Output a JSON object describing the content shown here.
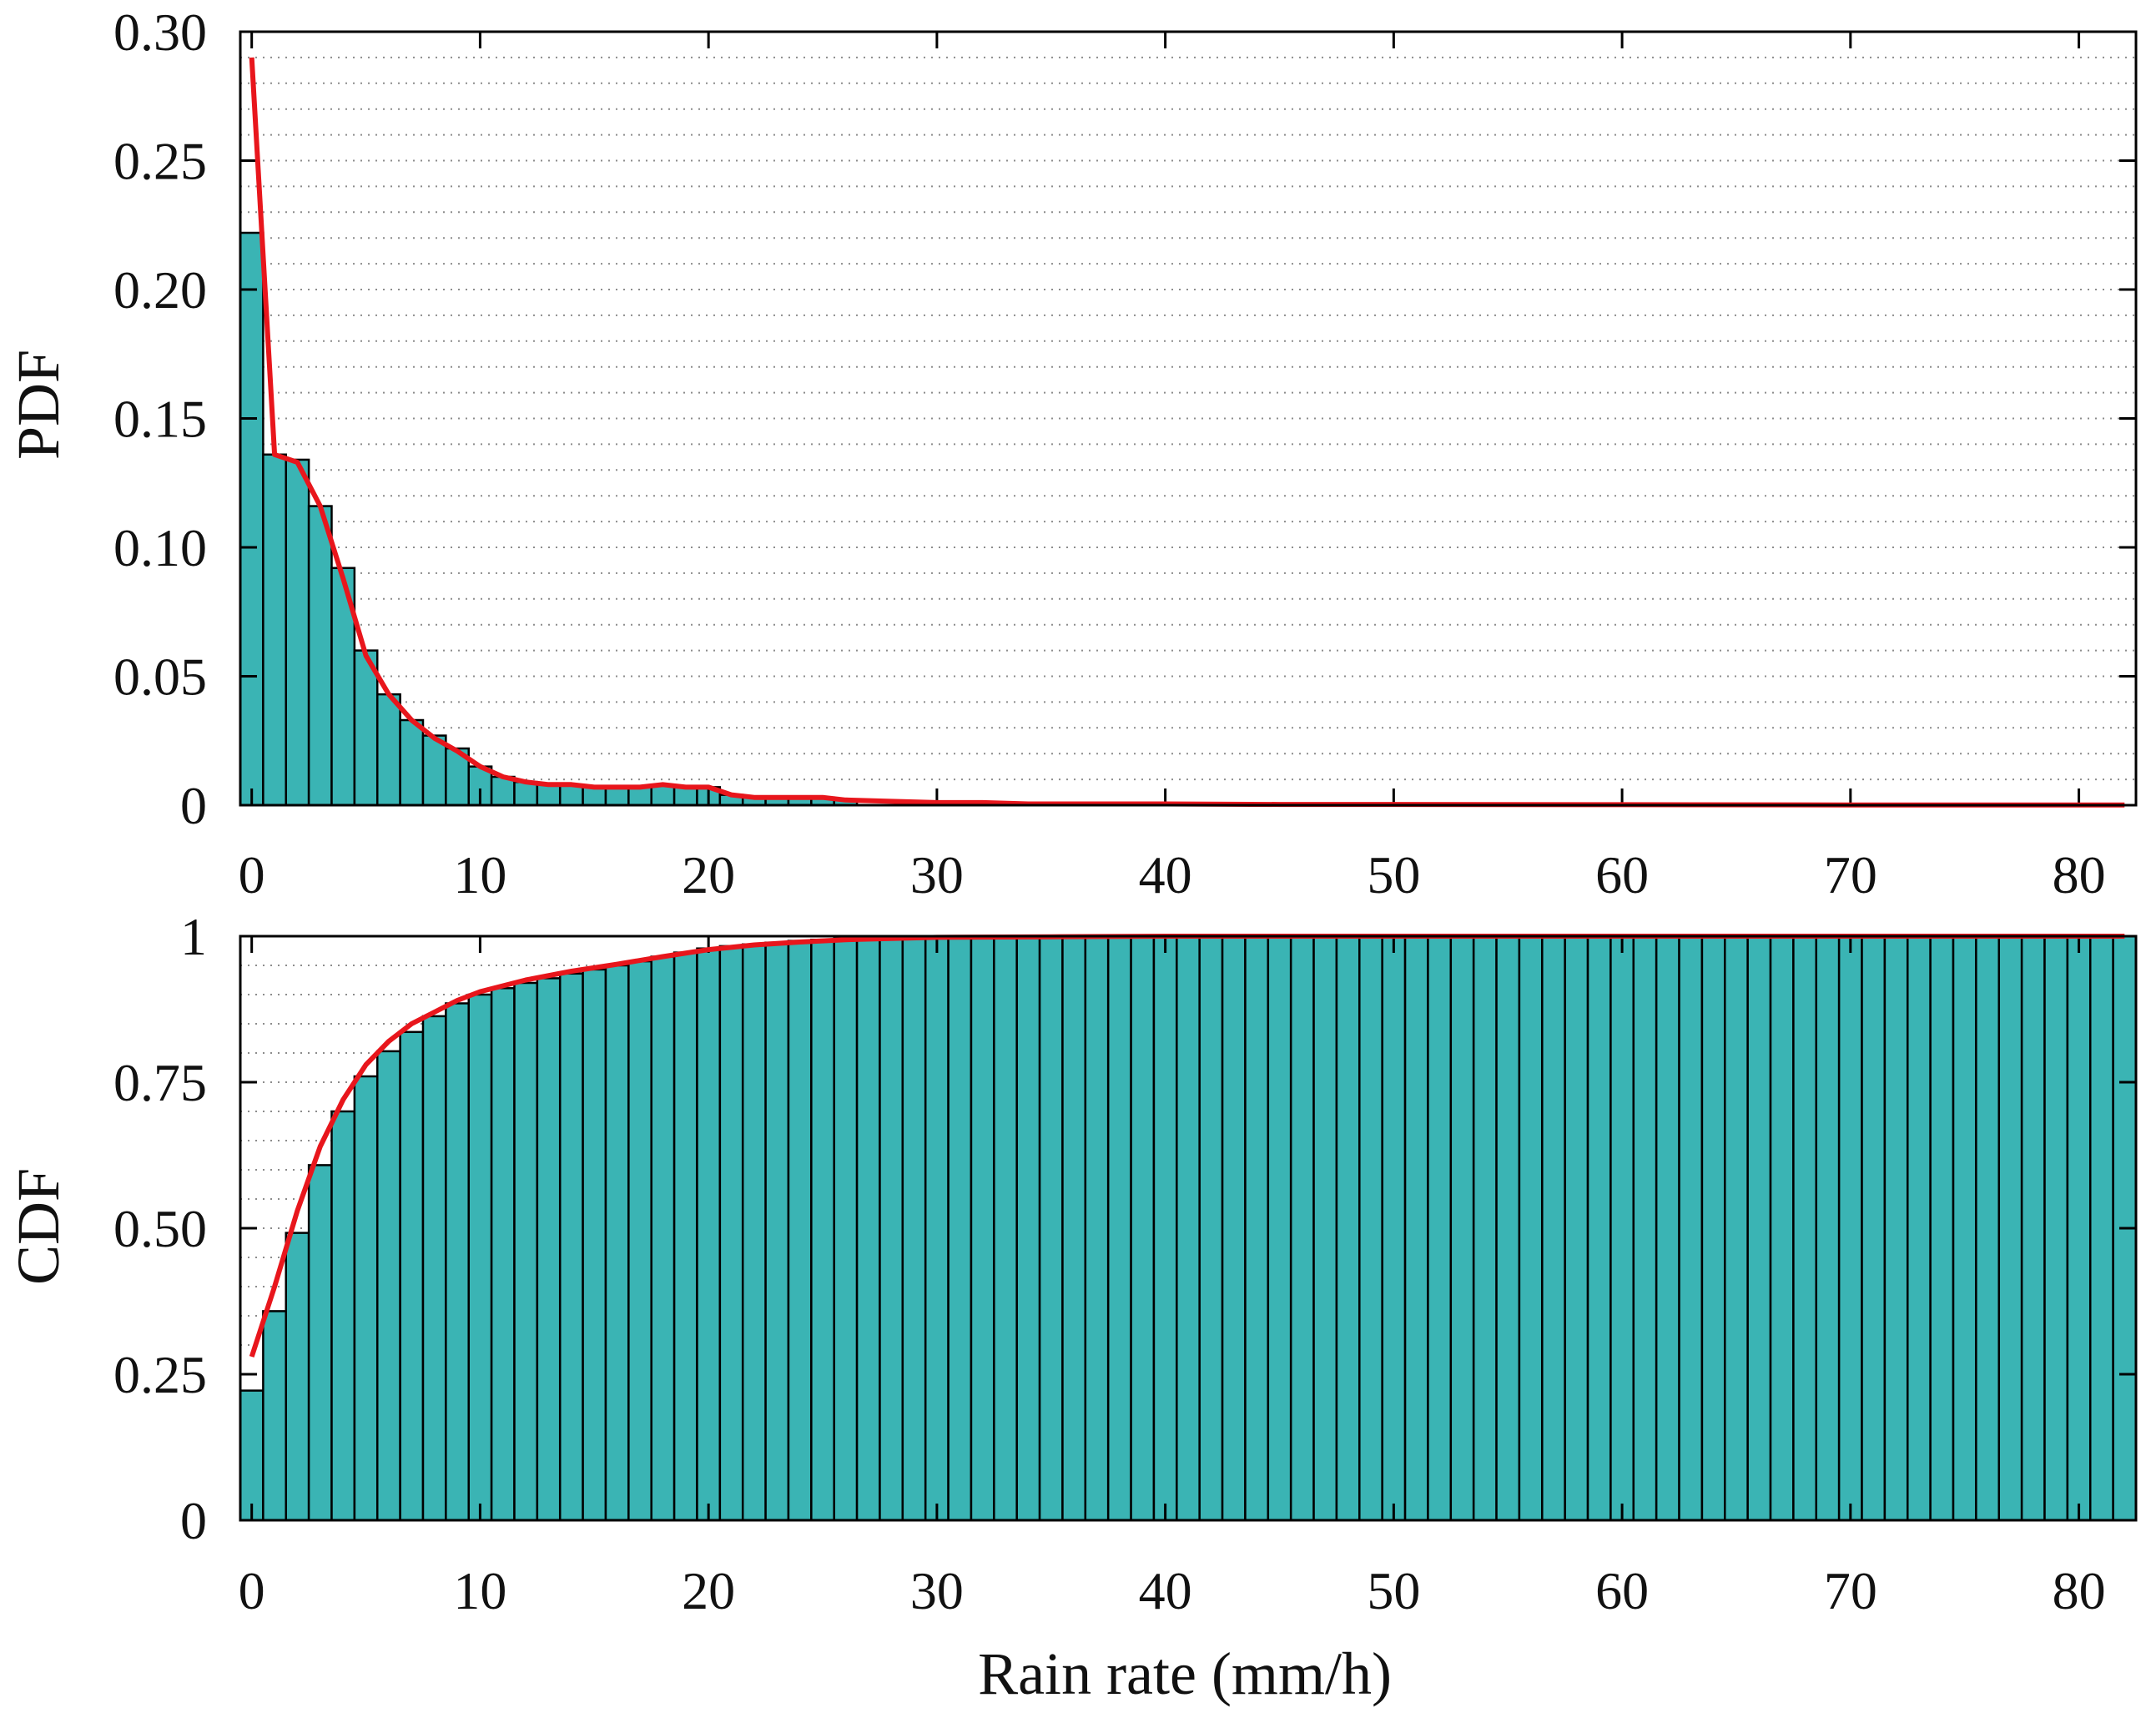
{
  "colors": {
    "bar_fill": "#3ab4b4",
    "bar_edge": "#000000",
    "fit_line": "#e8161c",
    "grid": "#8c8c8c",
    "axes": "#000000"
  },
  "chart_data": [
    {
      "id": "pdf",
      "type": "bar",
      "title": "",
      "xlabel": "",
      "ylabel": "PDF",
      "xlim": [
        -0.5,
        82.5
      ],
      "ylim": [
        0,
        0.3
      ],
      "grid": true,
      "bin_width": 1,
      "xticks": [
        0,
        10,
        20,
        30,
        40,
        50,
        60,
        70,
        80
      ],
      "xtick_labels": [
        "0",
        "10",
        "20",
        "30",
        "40",
        "50",
        "60",
        "70",
        "80"
      ],
      "yticks": [
        0,
        0.05,
        0.1,
        0.15,
        0.2,
        0.25,
        0.3
      ],
      "ytick_labels": [
        "0",
        "0.05",
        "0.10",
        "0.15",
        "0.20",
        "0.25",
        "0.30"
      ],
      "bar_x": [
        0,
        1,
        2,
        3,
        4,
        5,
        6,
        7,
        8,
        9,
        10,
        11,
        12,
        13,
        14,
        15,
        16,
        17,
        18,
        19,
        20,
        21,
        22,
        23,
        24,
        25,
        26
      ],
      "bar_values": [
        0.222,
        0.136,
        0.134,
        0.116,
        0.092,
        0.06,
        0.043,
        0.033,
        0.027,
        0.022,
        0.015,
        0.011,
        0.009,
        0.008,
        0.008,
        0.007,
        0.007,
        0.007,
        0.008,
        0.007,
        0.007,
        0.004,
        0.003,
        0.003,
        0.003,
        0.003,
        0.002
      ],
      "fit": {
        "name": "fit",
        "x": [
          0,
          1,
          2,
          3,
          4,
          5,
          6,
          7,
          8,
          9,
          10,
          11,
          12,
          13,
          14,
          15,
          16,
          17,
          18,
          19,
          20,
          21,
          22,
          23,
          24,
          25,
          26,
          28,
          30,
          32,
          34,
          36,
          40,
          45,
          50,
          60,
          70,
          82
        ],
        "y": [
          0.29,
          0.136,
          0.133,
          0.116,
          0.088,
          0.058,
          0.043,
          0.033,
          0.026,
          0.021,
          0.015,
          0.011,
          0.009,
          0.008,
          0.008,
          0.007,
          0.007,
          0.007,
          0.008,
          0.007,
          0.007,
          0.004,
          0.003,
          0.003,
          0.003,
          0.003,
          0.002,
          0.0015,
          0.001,
          0.001,
          0.0005,
          0.0005,
          0.0005,
          0.0003,
          0.0003,
          0.0002,
          0.0001,
          0.0001
        ]
      }
    },
    {
      "id": "cdf",
      "type": "bar",
      "title": "",
      "xlabel": "Rain rate (mm/h)",
      "ylabel": "CDF",
      "xlim": [
        -0.5,
        82.5
      ],
      "ylim": [
        0,
        1
      ],
      "grid": true,
      "bin_width": 1,
      "xticks": [
        0,
        10,
        20,
        30,
        40,
        50,
        60,
        70,
        80
      ],
      "xtick_labels": [
        "0",
        "10",
        "20",
        "30",
        "40",
        "50",
        "60",
        "70",
        "80"
      ],
      "yticks": [
        0,
        0.25,
        0.5,
        0.75,
        1
      ],
      "ytick_labels": [
        "0",
        "0.25",
        "0.50",
        "0.75",
        "1"
      ],
      "bar_x": [
        0,
        1,
        2,
        3,
        4,
        5,
        6,
        7,
        8,
        9,
        10,
        11,
        12,
        13,
        14,
        15,
        16,
        17,
        18,
        19,
        20,
        21,
        22,
        23,
        24,
        25,
        26,
        27,
        28,
        29,
        30,
        31,
        32,
        33,
        34,
        35,
        36,
        37,
        38,
        39,
        40,
        41,
        42,
        43,
        44,
        45,
        46,
        47,
        48,
        49,
        50,
        51,
        52,
        53,
        54,
        55,
        56,
        57,
        58,
        59,
        60,
        61,
        62,
        63,
        64,
        65,
        66,
        67,
        68,
        69,
        70,
        71,
        72,
        73,
        74,
        75,
        76,
        77,
        78,
        79,
        80,
        81,
        82
      ],
      "bar_values": [
        0.222,
        0.358,
        0.492,
        0.608,
        0.7,
        0.76,
        0.803,
        0.836,
        0.863,
        0.885,
        0.9,
        0.911,
        0.92,
        0.928,
        0.936,
        0.943,
        0.95,
        0.957,
        0.965,
        0.972,
        0.979,
        0.983,
        0.986,
        0.989,
        0.992,
        0.994,
        0.996,
        0.997,
        0.998,
        0.998,
        0.999,
        0.999,
        0.999,
        0.999,
        0.999,
        0.999,
        0.999,
        1.0,
        1.0,
        1.0,
        1.0,
        1.0,
        1.0,
        1.0,
        1.0,
        1.0,
        1.0,
        1.0,
        1.0,
        1.0,
        1.0,
        1.0,
        1.0,
        1.0,
        1.0,
        1.0,
        1.0,
        1.0,
        1.0,
        1.0,
        1.0,
        1.0,
        1.0,
        1.0,
        1.0,
        1.0,
        1.0,
        1.0,
        1.0,
        1.0,
        1.0,
        1.0,
        1.0,
        1.0,
        1.0,
        1.0,
        1.0,
        1.0,
        1.0,
        1.0,
        1.0,
        1.0,
        1.0
      ],
      "fit": {
        "name": "fit",
        "x": [
          0,
          1,
          2,
          3,
          4,
          5,
          6,
          7,
          8,
          9,
          10,
          12,
          14,
          16,
          18,
          20,
          22,
          24,
          26,
          28,
          30,
          35,
          40,
          50,
          60,
          70,
          82
        ],
        "y": [
          0.28,
          0.4,
          0.53,
          0.64,
          0.72,
          0.78,
          0.82,
          0.85,
          0.87,
          0.89,
          0.905,
          0.925,
          0.94,
          0.952,
          0.965,
          0.977,
          0.985,
          0.99,
          0.994,
          0.996,
          0.998,
          0.999,
          1.0,
          1.0,
          1.0,
          1.0,
          1.0
        ]
      }
    }
  ]
}
